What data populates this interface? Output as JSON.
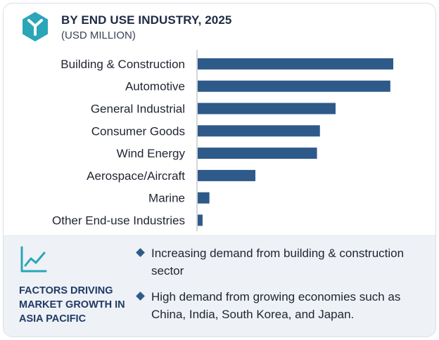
{
  "header": {
    "title": "BY END USE INDUSTRY, 2025",
    "subtitle": "(USD MILLION)"
  },
  "colors": {
    "bar": "#2e5a8a",
    "axis": "#a9adb3",
    "brand": "#2aa6b8"
  },
  "icons": {
    "logo": "hexagon-cube-logo",
    "factors": "trend-chart-icon",
    "bullet": "diamond-icon"
  },
  "chart_data": {
    "type": "bar",
    "orientation": "horizontal",
    "categories": [
      "Building & Construction",
      "Automotive",
      "General Industrial",
      "Consumer Goods",
      "Wind Energy",
      "Aerospace/Aircraft",
      "Marine",
      "Other End-use Industries"
    ],
    "values": [
      100,
      98.5,
      70.5,
      62.5,
      61,
      29.5,
      6,
      2.5
    ],
    "xlim": [
      0,
      100
    ],
    "grid": false,
    "legend": "none"
  },
  "factors": {
    "title": "FACTORS DRIVING MARKET GROWTH IN ASIA PACIFIC",
    "items": [
      "Increasing demand from building & construction sector",
      "High demand from growing economies such as China, India, South Korea, and Japan."
    ]
  }
}
